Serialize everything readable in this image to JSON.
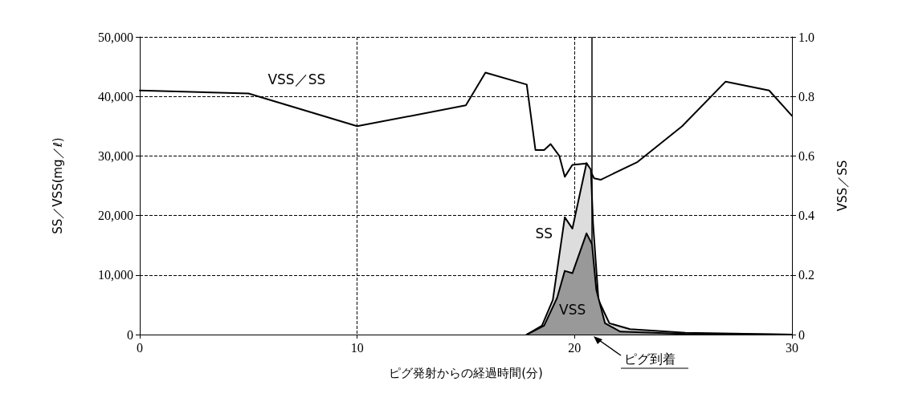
{
  "chart_data": {
    "type": "line",
    "xlabel": "ピグ発射からの経過時間(分)",
    "ylabel": "SS／VSS(mg／ℓ)",
    "y2label": "VSS／SS",
    "xlim": [
      0,
      30
    ],
    "xticks": [
      0,
      10,
      20,
      30
    ],
    "ylim": [
      0,
      50000
    ],
    "yticks": [
      {
        "value": 0,
        "label": "0"
      },
      {
        "value": 10000,
        "label": "10,000"
      },
      {
        "value": 20000,
        "label": "20,000"
      },
      {
        "value": 30000,
        "label": "30,000"
      },
      {
        "value": 40000,
        "label": "40,000"
      },
      {
        "value": 50000,
        "label": "50,000"
      }
    ],
    "y2lim": [
      0,
      1
    ],
    "y2ticks": [
      0,
      0.2,
      0.4,
      0.6,
      0.8,
      {
        "value": 1,
        "label": "1.0"
      }
    ],
    "grid": true,
    "legend": false,
    "line_style": "solid",
    "marker": "none",
    "series": [
      {
        "name": "VSS／SS",
        "type": "line",
        "axis": "y2",
        "color": "#000000",
        "x": [
          0,
          5,
          10,
          15,
          15.9,
          17.8,
          18.2,
          18.6,
          18.9,
          19.3,
          19.55,
          19.9,
          20.55,
          20.9,
          21.2,
          22.9,
          24.95,
          26.95,
          28.95,
          30
        ],
        "values": [
          0.82,
          0.81,
          0.7,
          0.77,
          0.88,
          0.84,
          0.62,
          0.62,
          0.64,
          0.6,
          0.53,
          0.57,
          0.575,
          0.525,
          0.52,
          0.58,
          0.7,
          0.85,
          0.82,
          0.735
        ]
      },
      {
        "name": "SS",
        "type": "area",
        "color": "#dddddd",
        "x": [
          17.8,
          18.5,
          19.0,
          19.55,
          19.9,
          20.55,
          20.75,
          20.85,
          21.1,
          21.6,
          22.55,
          25.1,
          30
        ],
        "values": [
          0,
          1500,
          5800,
          19700,
          17800,
          28800,
          27700,
          18700,
          5800,
          1900,
          900,
          300,
          0
        ]
      },
      {
        "name": "VSS",
        "type": "area",
        "color": "#999999",
        "x": [
          17.8,
          18.6,
          19.2,
          19.55,
          19.9,
          20.55,
          20.8,
          21.0,
          21.4,
          22.1,
          25.1,
          30
        ],
        "values": [
          0,
          1500,
          6200,
          10700,
          10300,
          17000,
          15200,
          7500,
          1900,
          500,
          100,
          0
        ]
      }
    ],
    "ref_lines": [
      {
        "axis": "x",
        "value": 20.8,
        "label": "ピグ到着",
        "color": "#000000"
      }
    ]
  }
}
